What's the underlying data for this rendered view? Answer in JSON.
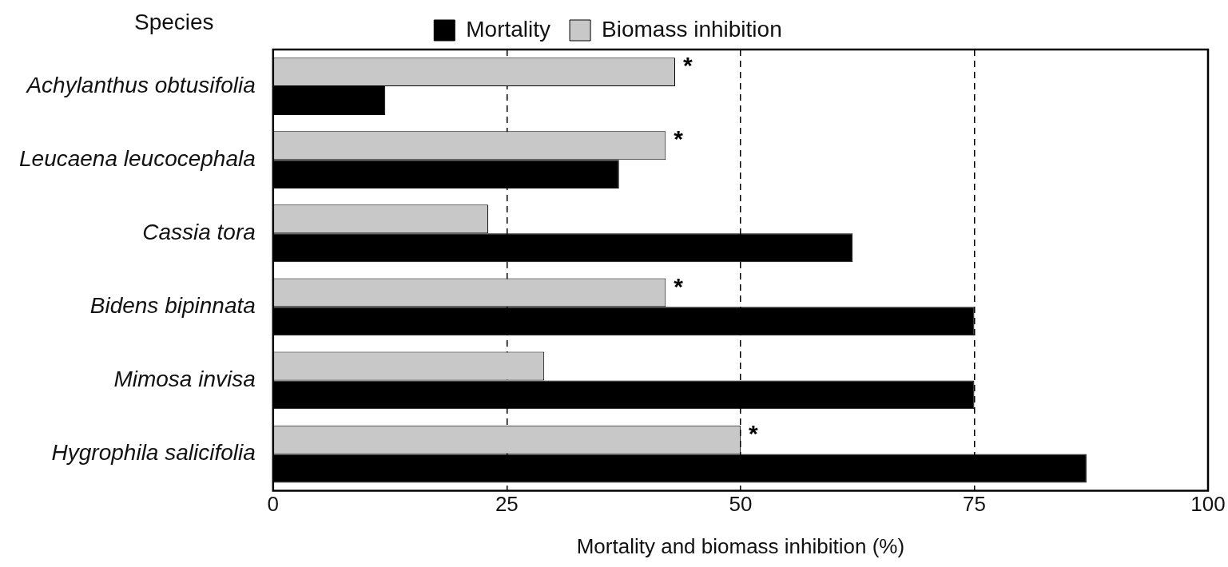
{
  "chart_data": {
    "type": "bar",
    "orientation": "horizontal",
    "ylabel": "Species",
    "xlabel": "Mortality and biomass inhibition (%)",
    "categories": [
      "Achylanthus obtusifolia",
      "Leucaena leucocephala",
      "Cassia tora",
      "Bidens bipinnata",
      "Mimosa invisa",
      "Hygrophila salicifolia"
    ],
    "series": [
      {
        "name": "Biomass inhibition",
        "color": "#c8c8c8",
        "values": [
          43,
          42,
          23,
          42,
          29,
          50
        ]
      },
      {
        "name": "Mortality",
        "color": "#000000",
        "values": [
          12,
          37,
          62,
          75,
          75,
          87
        ]
      }
    ],
    "xlim": [
      0,
      100
    ],
    "xticks": [
      0,
      25,
      50,
      75,
      100
    ],
    "grid": "x",
    "legend": "top",
    "annotations": [
      {
        "text": "*",
        "x": 43,
        "y": "Achylanthus obtusifolia"
      },
      {
        "text": "*",
        "x": 42,
        "y": "Leucaena leucocephala"
      },
      {
        "text": "*",
        "x": 42,
        "y": "Bidens bipinnata"
      },
      {
        "text": "*",
        "x": 50,
        "y": "Hygrophila salicifolia"
      }
    ]
  }
}
